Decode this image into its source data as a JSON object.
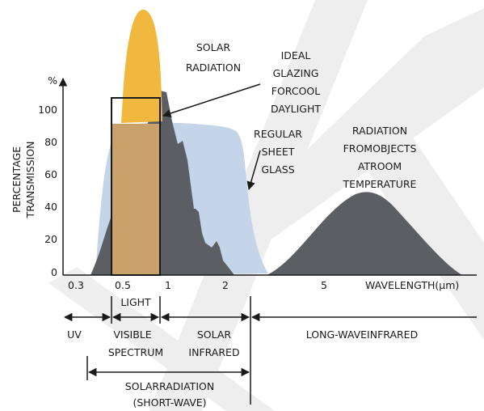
{
  "y_axis": {
    "unit": "%",
    "title_line1": "PERCENTAGE",
    "title_line2": "TRANSMISSION",
    "ticks": [
      "100",
      "80",
      "60",
      "40",
      "20",
      "0"
    ]
  },
  "x_axis": {
    "ticks": [
      "0.3",
      "0.5",
      "1",
      "2",
      "5"
    ],
    "label": "WAVELENGTH(µm)"
  },
  "annotations": {
    "solar_radiation": [
      "SOLAR",
      "RADIATION"
    ],
    "ideal_glazing": [
      "IDEAL",
      "GLAZING",
      "FORCOOL",
      "DAYLIGHT"
    ],
    "regular_glass": [
      "REGULAR",
      "SHEET",
      "GLASS"
    ],
    "room_temp": [
      "RADIATION",
      "FROMOBJECTS",
      "ATROOM",
      "TEMPERATURE"
    ]
  },
  "bands": {
    "light": "LIGHT",
    "uv": "UV",
    "visible": [
      "VISIBLE",
      "SPECTRUM"
    ],
    "solar_infrared": [
      "SOLAR",
      "INFRARED"
    ],
    "long_wave": "LONG-WAVEINFRARED",
    "solar_short_wave": [
      "SOLARRADIATION",
      "(SHORT-WAVE)"
    ]
  },
  "colors": {
    "solar": "#f0b83e",
    "glass": "#c4d5ea",
    "dark": "#5b5e63",
    "overlap": "#c9a26b",
    "watermark": "#e1e1e1",
    "ink": "#1a1a1a"
  }
}
